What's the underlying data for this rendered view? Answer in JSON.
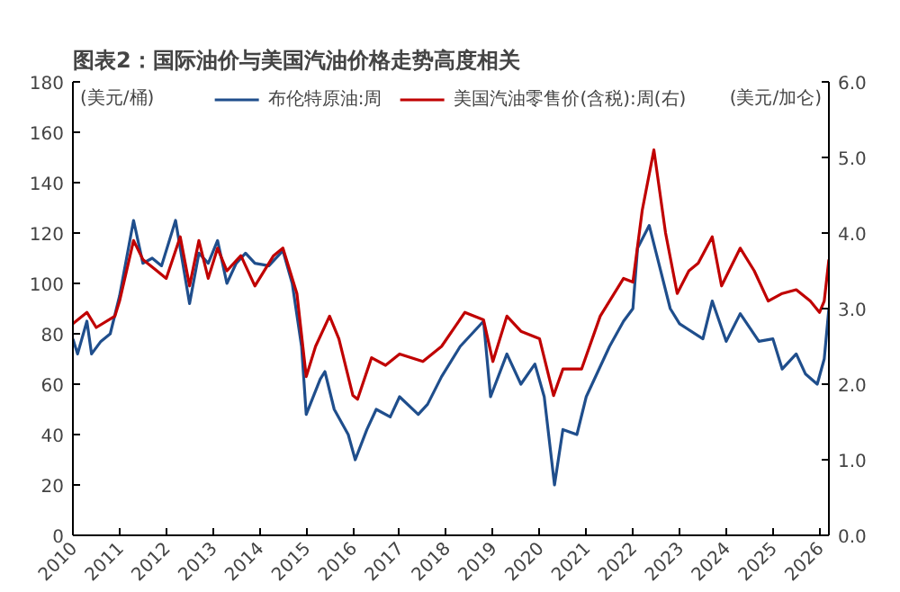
{
  "chart_data": {
    "type": "line",
    "title": "图表2：国际油价与美国汽油价格走势高度相关",
    "ylabel": "(美元/桶)",
    "y2label": "(美元/加仑)",
    "xlim": [
      2010,
      2026.2
    ],
    "xticks": [
      2010,
      2011,
      2012,
      2013,
      2014,
      2015,
      2016,
      2017,
      2018,
      2019,
      2020,
      2021,
      2022,
      2023,
      2024,
      2025,
      2026
    ],
    "ylim": [
      0,
      180
    ],
    "yticks": [
      0,
      20,
      40,
      60,
      80,
      100,
      120,
      140,
      160,
      180
    ],
    "y2lim": [
      0,
      6
    ],
    "y2ticks": [
      {
        "value": 0,
        "label": "0.0"
      },
      {
        "value": 1,
        "label": "1.0"
      },
      {
        "value": 2,
        "label": "2.0"
      },
      {
        "value": 3,
        "label": "3.0"
      },
      {
        "value": 4,
        "label": "4.0"
      },
      {
        "value": 5,
        "label": "5.0"
      },
      {
        "value": 6,
        "label": "6.0"
      }
    ],
    "grid": false,
    "legend": "top",
    "series": [
      {
        "name": "布伦特原油:周",
        "color": "#1f4e8c",
        "x": [
          2010.0,
          2010.1,
          2010.3,
          2010.4,
          2010.6,
          2010.8,
          2011.0,
          2011.2,
          2011.3,
          2011.5,
          2011.7,
          2011.9,
          2012.2,
          2012.5,
          2012.7,
          2012.9,
          2013.1,
          2013.3,
          2013.5,
          2013.7,
          2013.9,
          2014.2,
          2014.5,
          2014.7,
          2014.9,
          2015.0,
          2015.3,
          2015.4,
          2015.6,
          2015.9,
          2016.05,
          2016.3,
          2016.5,
          2016.8,
          2017.0,
          2017.4,
          2017.6,
          2017.9,
          2018.3,
          2018.8,
          2018.95,
          2019.3,
          2019.6,
          2019.9,
          2020.1,
          2020.32,
          2020.5,
          2020.8,
          2021.0,
          2021.5,
          2021.8,
          2022.0,
          2022.1,
          2022.35,
          2022.5,
          2022.8,
          2023.0,
          2023.5,
          2023.7,
          2024.0,
          2024.3,
          2024.7,
          2025.0,
          2025.2,
          2025.5,
          2025.7,
          2025.95,
          2026.1,
          2026.2
        ],
        "values": [
          78,
          72,
          85,
          72,
          77,
          80,
          95,
          115,
          125,
          108,
          110,
          107,
          125,
          92,
          112,
          108,
          117,
          100,
          108,
          112,
          108,
          107,
          113,
          100,
          75,
          48,
          62,
          65,
          50,
          40,
          30,
          42,
          50,
          47,
          55,
          48,
          52,
          63,
          75,
          85,
          55,
          72,
          60,
          68,
          55,
          20,
          42,
          40,
          55,
          75,
          85,
          90,
          114,
          123,
          112,
          90,
          84,
          78,
          93,
          77,
          88,
          77,
          78,
          66,
          72,
          64,
          60,
          70,
          90
        ]
      },
      {
        "name": "美国汽油零售价(含税):周(右)",
        "color": "#c00000",
        "axis": "y2",
        "x": [
          2010.0,
          2010.3,
          2010.5,
          2010.9,
          2011.0,
          2011.3,
          2011.5,
          2011.8,
          2012.0,
          2012.3,
          2012.5,
          2012.7,
          2012.9,
          2013.1,
          2013.3,
          2013.6,
          2013.9,
          2014.3,
          2014.5,
          2014.8,
          2015.0,
          2015.2,
          2015.5,
          2015.7,
          2016.0,
          2016.1,
          2016.4,
          2016.7,
          2017.0,
          2017.5,
          2017.9,
          2018.4,
          2018.8,
          2019.0,
          2019.3,
          2019.6,
          2020.0,
          2020.3,
          2020.5,
          2020.9,
          2021.3,
          2021.8,
          2022.0,
          2022.2,
          2022.45,
          2022.7,
          2022.95,
          2023.2,
          2023.4,
          2023.7,
          2023.9,
          2024.3,
          2024.6,
          2024.9,
          2025.2,
          2025.5,
          2025.8,
          2026.0,
          2026.1,
          2026.2
        ],
        "values": [
          2.8,
          2.95,
          2.75,
          2.9,
          3.1,
          3.9,
          3.65,
          3.5,
          3.4,
          3.95,
          3.3,
          3.9,
          3.4,
          3.8,
          3.5,
          3.7,
          3.3,
          3.7,
          3.8,
          3.2,
          2.1,
          2.5,
          2.9,
          2.6,
          1.85,
          1.8,
          2.35,
          2.25,
          2.4,
          2.3,
          2.5,
          2.95,
          2.85,
          2.3,
          2.9,
          2.7,
          2.6,
          1.85,
          2.2,
          2.2,
          2.9,
          3.4,
          3.35,
          4.3,
          5.1,
          4.0,
          3.2,
          3.5,
          3.6,
          3.95,
          3.3,
          3.8,
          3.5,
          3.1,
          3.2,
          3.25,
          3.1,
          2.95,
          3.1,
          3.65
        ]
      }
    ]
  }
}
